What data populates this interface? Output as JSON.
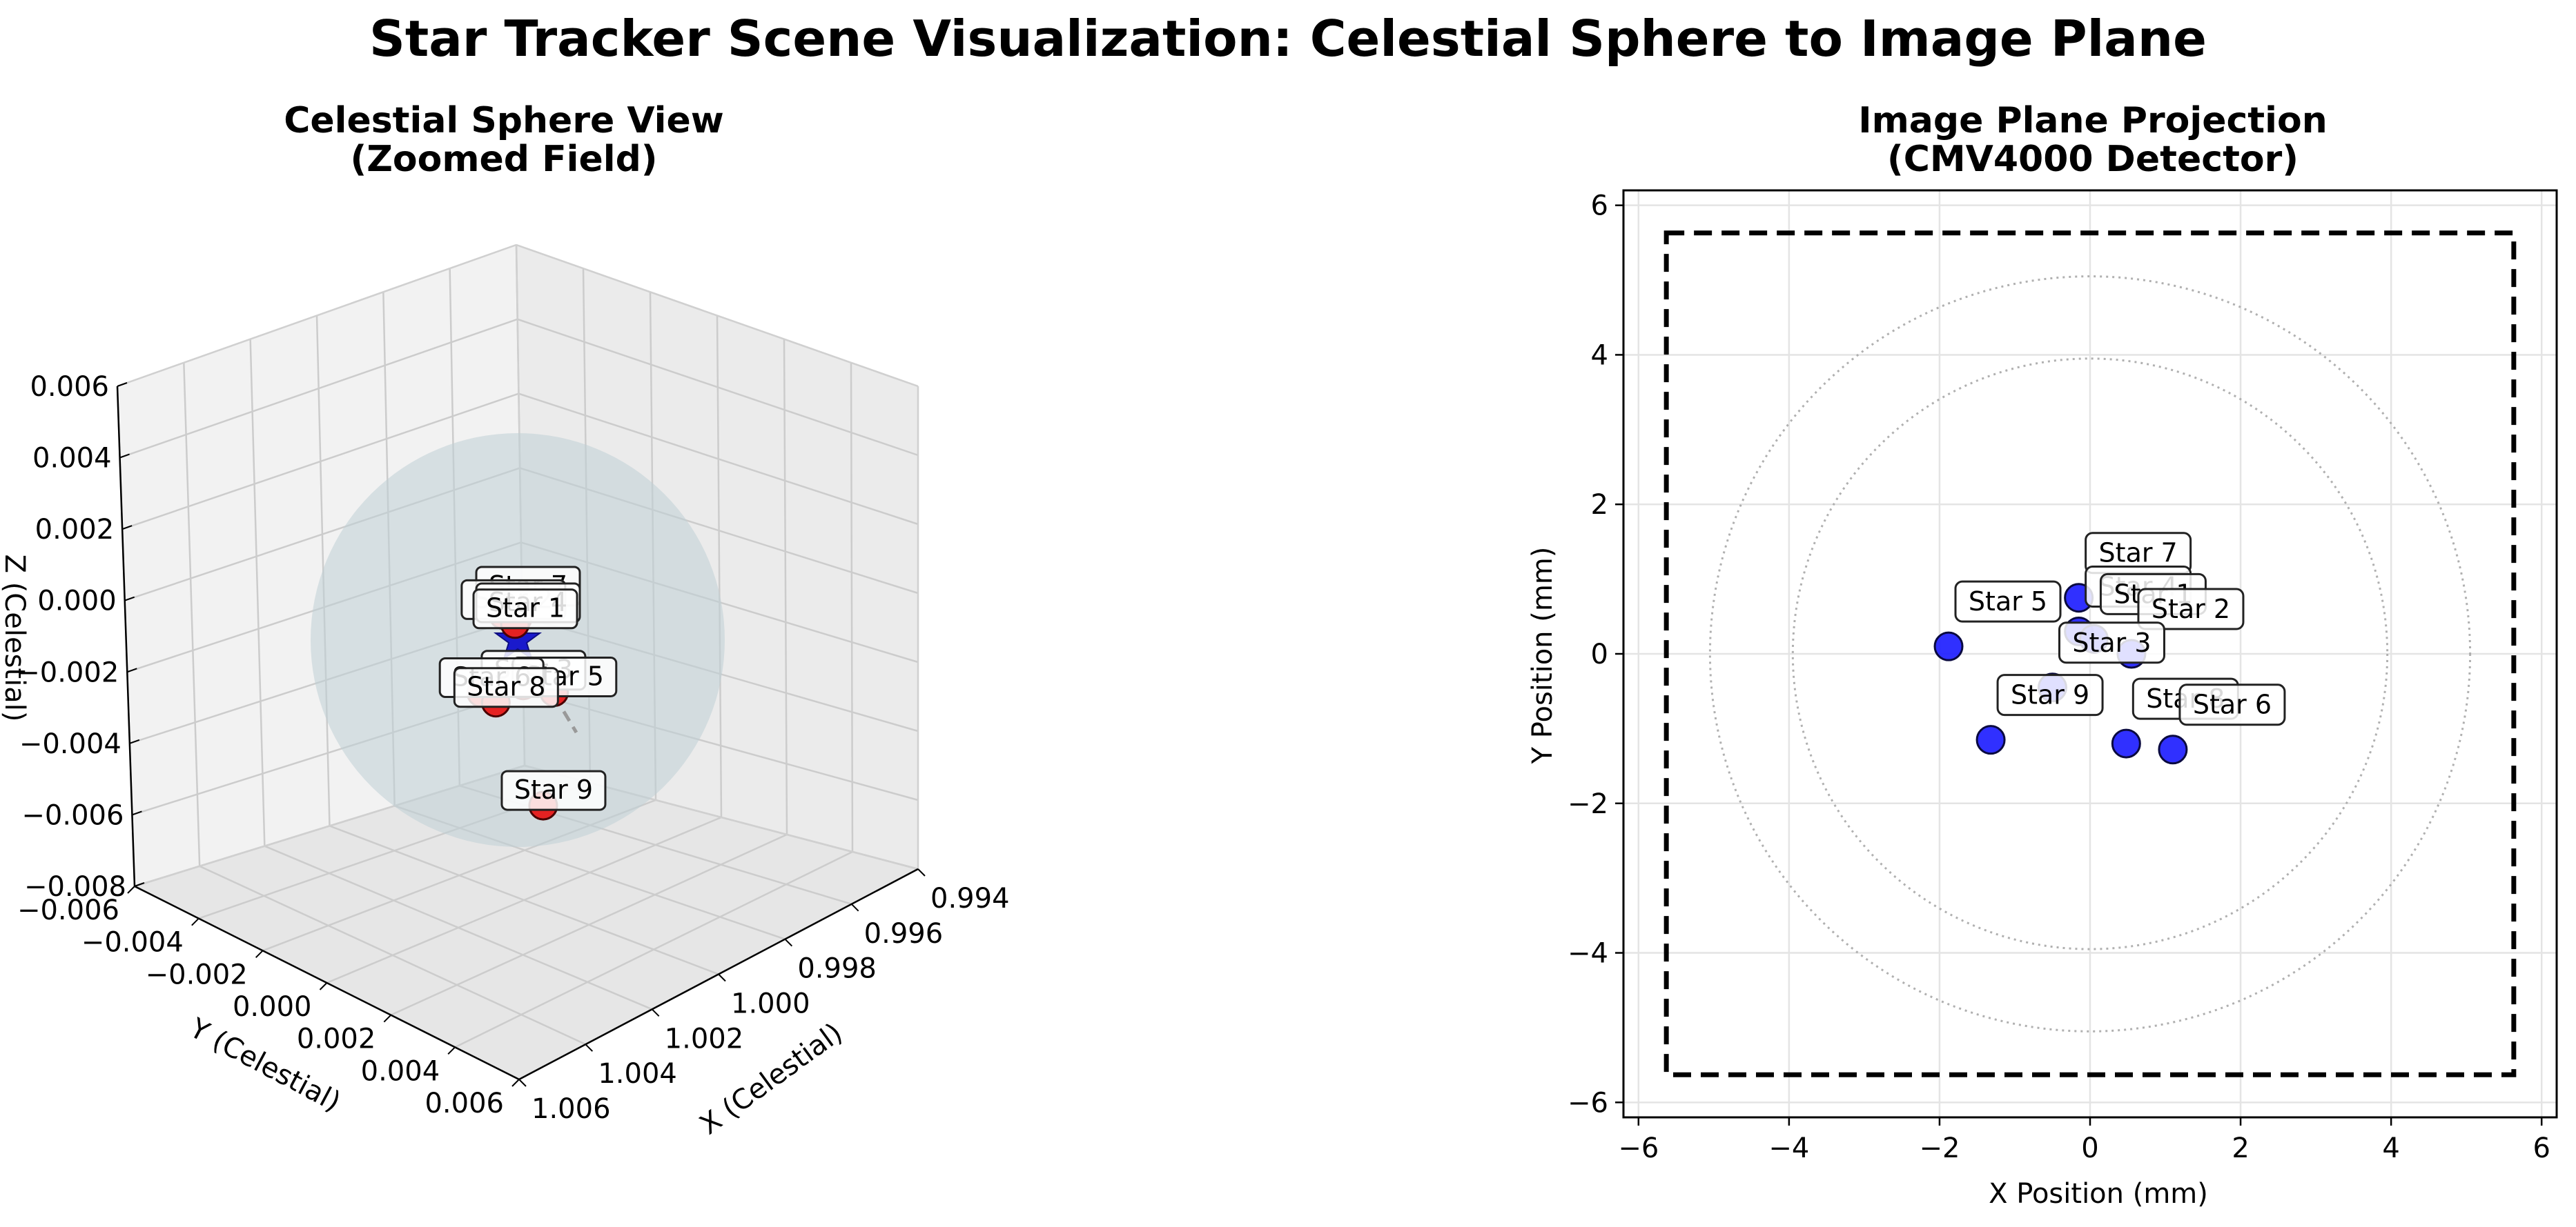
{
  "figure": {
    "title": "Star Tracker Scene Visualization: Celestial Sphere to Image Plane"
  },
  "chart_data": [
    {
      "type": "scatter3d",
      "title_lines": [
        "Celestial Sphere View",
        "(Zoomed Field)"
      ],
      "xlabel": "X (Celestial)",
      "ylabel": "Y (Celestial)",
      "zlabel": "Z (Celestial)",
      "x_ticks": [
        "0.994",
        "0.996",
        "0.998",
        "1.000",
        "1.002",
        "1.004",
        "1.006"
      ],
      "y_ticks": [
        "−0.006",
        "−0.004",
        "−0.002",
        "0.000",
        "0.002",
        "0.004",
        "0.006"
      ],
      "z_ticks": [
        "−0.008",
        "−0.006",
        "−0.004",
        "−0.002",
        "0.000",
        "0.002",
        "0.004",
        "0.006"
      ],
      "grid": true,
      "colors": {
        "star": "#e52222",
        "boresight": "#1a1acc",
        "sphere": "#bfcfd6"
      },
      "boresight": {
        "marker": "star"
      },
      "stars": [
        {
          "label": "Star 7",
          "x": 1.0,
          "y": 0.0,
          "z": 0.001
        },
        {
          "label": "Star 2",
          "x": 1.0,
          "y": -0.0016,
          "z": 0.0005
        },
        {
          "label": "Star 4",
          "x": 1.0,
          "y": 0.0,
          "z": 0.0005
        },
        {
          "label": "Star 1",
          "x": 1.0,
          "y": -0.0003,
          "z": 0.0003
        },
        {
          "label": "Star 3",
          "x": 1.0,
          "y": 0.0006,
          "z": -0.0015
        },
        {
          "label": "Star 5",
          "x": 1.0,
          "y": 0.004,
          "z": -0.0015
        },
        {
          "label": "Star 6",
          "x": 1.0,
          "y": -0.004,
          "z": -0.002
        },
        {
          "label": "Star 8",
          "x": 1.0,
          "y": -0.0024,
          "z": -0.0022
        },
        {
          "label": "Star 9",
          "x": 1.0,
          "y": 0.0028,
          "z": -0.005
        }
      ]
    },
    {
      "type": "scatter",
      "title_lines": [
        "Image Plane Projection",
        "(CMV4000 Detector)"
      ],
      "xlabel": "X Position (mm)",
      "ylabel": "Y Position (mm)",
      "xlim": [
        -6.2,
        6.2
      ],
      "ylim": [
        -6.2,
        6.2
      ],
      "x_ticks": [
        -6,
        -4,
        -2,
        0,
        2,
        4,
        6
      ],
      "y_ticks": [
        -6,
        -4,
        -2,
        0,
        2,
        4,
        6
      ],
      "grid": true,
      "detector_half_size": 5.63,
      "fov_circle_radii": [
        3.95,
        5.05
      ],
      "colors": {
        "star": "#1a1aff",
        "detector": "#000000",
        "circle": "#b0b0b0"
      },
      "points": [
        {
          "label": "Star 7",
          "x": -0.15,
          "y": 0.75
        },
        {
          "label": "Star 4",
          "x": -0.15,
          "y": 0.3
        },
        {
          "label": "Star 1",
          "x": 0.05,
          "y": 0.2
        },
        {
          "label": "Star 2",
          "x": 0.55,
          "y": 0.0
        },
        {
          "label": "Star 5",
          "x": -1.88,
          "y": 0.1
        },
        {
          "label": "Star 3",
          "x": -0.5,
          "y": -0.45
        },
        {
          "label": "Star 9",
          "x": -1.32,
          "y": -1.15
        },
        {
          "label": "Star 8",
          "x": 0.48,
          "y": -1.2
        },
        {
          "label": "Star 6",
          "x": 1.1,
          "y": -1.28
        }
      ]
    }
  ]
}
